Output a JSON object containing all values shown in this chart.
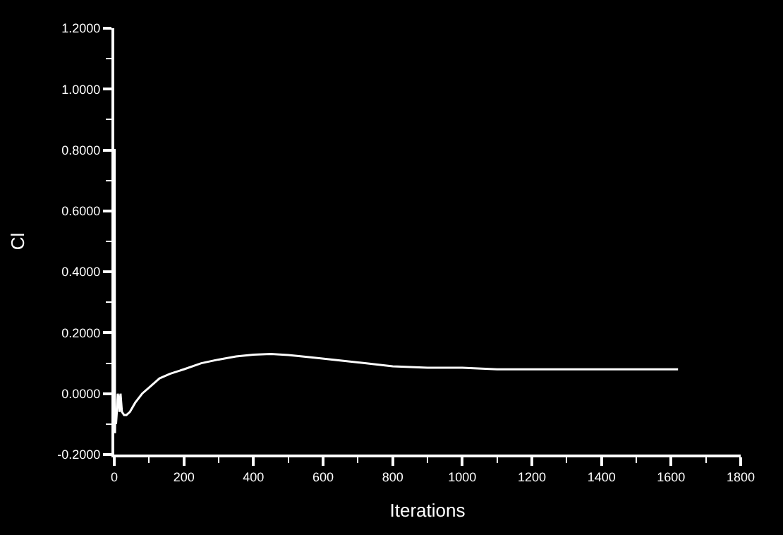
{
  "chart_data": {
    "type": "line",
    "xlabel": "Iterations",
    "ylabel": "Cl",
    "series": [
      {
        "color": "#ffffff",
        "x": [
          0,
          1,
          2,
          3,
          5,
          8,
          10,
          12,
          15,
          18,
          22,
          28,
          35,
          45,
          60,
          80,
          100,
          130,
          160,
          200,
          250,
          300,
          350,
          400,
          450,
          500,
          560,
          640,
          720,
          800,
          900,
          1000,
          1100,
          1300,
          1500,
          1620
        ],
        "values": [
          0.8,
          0.8,
          -0.13,
          -0.05,
          -0.1,
          -0.05,
          0.0,
          -0.01,
          -0.06,
          0.0,
          -0.06,
          -0.07,
          -0.07,
          -0.06,
          -0.03,
          0.0,
          0.02,
          0.05,
          0.065,
          0.08,
          0.1,
          0.112,
          0.122,
          0.128,
          0.13,
          0.127,
          0.12,
          0.11,
          0.1,
          0.09,
          0.085,
          0.085,
          0.08,
          0.08,
          0.08,
          0.08
        ]
      }
    ],
    "xlim": [
      0,
      1800
    ],
    "xticks": [
      0,
      200,
      400,
      600,
      800,
      1000,
      1200,
      1400,
      1600,
      1800
    ],
    "ylim": [
      -0.2,
      1.2
    ],
    "yticks": [
      {
        "value": -0.2,
        "label": "-0.2000"
      },
      {
        "value": 0,
        "label": "0.0000"
      },
      {
        "value": 0.2,
        "label": "0.2000"
      },
      {
        "value": 0.4,
        "label": "0.4000"
      },
      {
        "value": 0.6,
        "label": "0.6000"
      },
      {
        "value": 0.8,
        "label": "0.8000"
      },
      {
        "value": 1.0,
        "label": "1.0000"
      },
      {
        "value": 1.2,
        "label": "1.2000"
      }
    ],
    "grid": false
  }
}
